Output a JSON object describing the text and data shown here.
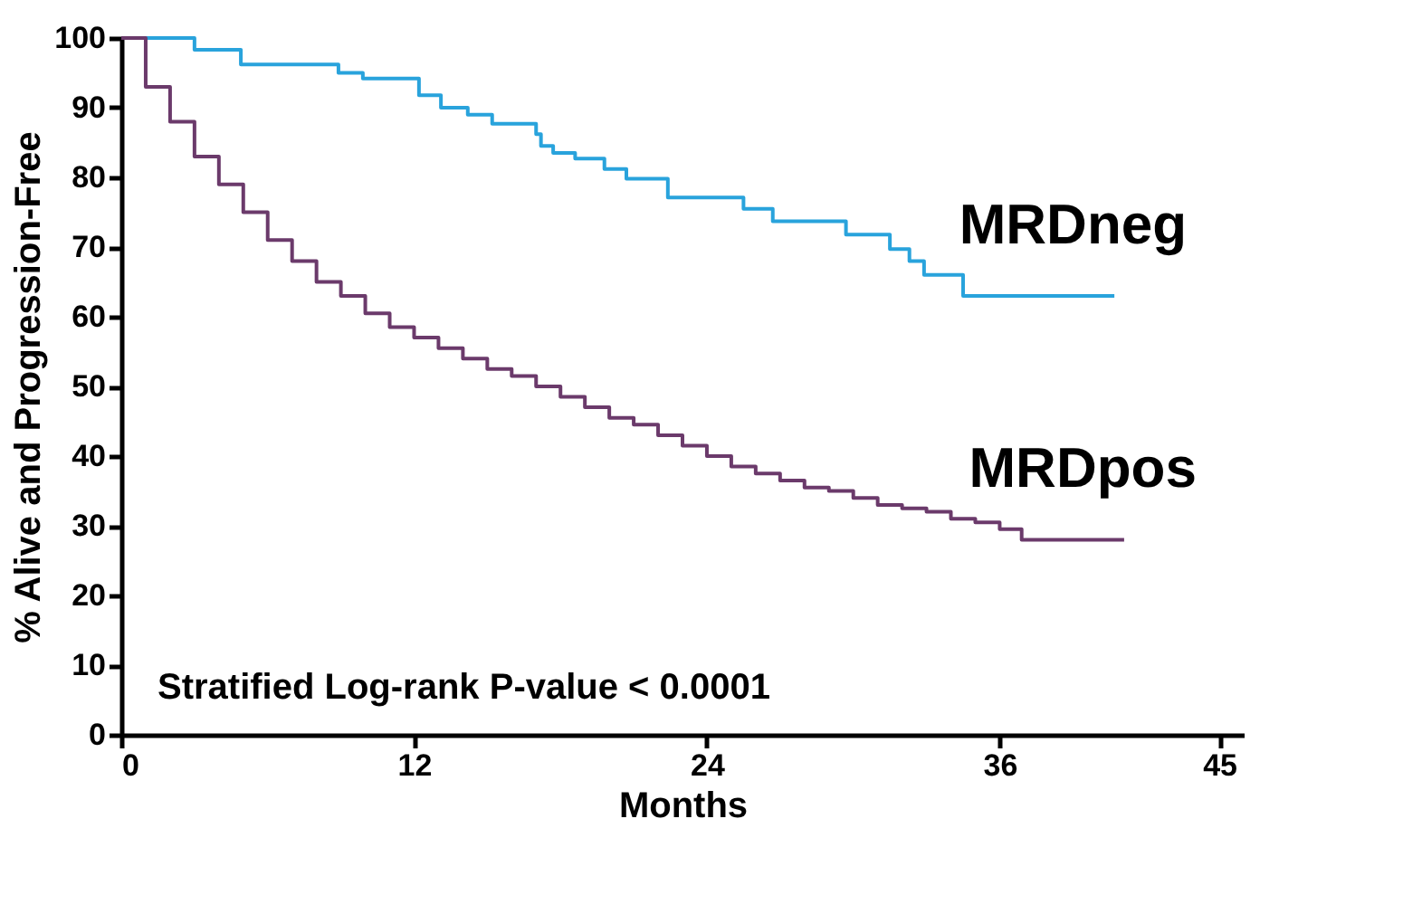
{
  "chart_data": {
    "type": "step",
    "xlabel": "Months",
    "ylabel": "% Alive and Progression-Free",
    "xlim": [
      0,
      46
    ],
    "xticks": [
      0,
      12,
      24,
      36,
      45
    ],
    "ylim": [
      0,
      100
    ],
    "yticks": [
      0,
      10,
      20,
      30,
      40,
      50,
      60,
      70,
      80,
      90,
      100
    ],
    "grid": false,
    "legend": false,
    "annotations": [
      "Stratified Log-rank P-value < 0.0001"
    ],
    "series": [
      {
        "name": "MRDneg",
        "color": "#29a3dc",
        "x": [
          0,
          3.0,
          4.9,
          8.9,
          9.9,
          12.2,
          13.1,
          14.2,
          15.2,
          17.0,
          17.2,
          17.7,
          18.6,
          19.8,
          20.7,
          22.4,
          25.5,
          26.7,
          29.7,
          31.5,
          32.3,
          32.9,
          34.5,
          40.7
        ],
        "values": [
          100,
          98.3,
          96.2,
          95,
          94.2,
          91.8,
          90,
          89,
          87.7,
          86.2,
          84.5,
          83.5,
          82.7,
          81.2,
          79.8,
          77.1,
          75.5,
          73.7,
          71.8,
          69.7,
          68,
          66,
          63,
          63
        ]
      },
      {
        "name": "MRDpos",
        "color": "#6b3a6b",
        "x": [
          0,
          1,
          2,
          3,
          4,
          5,
          6,
          7,
          8,
          9,
          10,
          11,
          12,
          13,
          14,
          15,
          16,
          17,
          18,
          19,
          20,
          21,
          22,
          23,
          24,
          25,
          26,
          27,
          28,
          29,
          30,
          31,
          32,
          33,
          34,
          35,
          36,
          36.9,
          41.1
        ],
        "values": [
          100,
          93,
          88,
          83,
          79,
          75,
          71,
          68,
          65,
          63,
          60.5,
          58.5,
          57,
          55.5,
          54,
          52.5,
          51.5,
          50,
          48.5,
          47,
          45.5,
          44.5,
          43,
          41.5,
          40,
          38.5,
          37.5,
          36.5,
          35.5,
          35,
          34,
          33,
          32.5,
          32,
          31,
          30.5,
          29.5,
          28,
          28
        ]
      }
    ]
  }
}
